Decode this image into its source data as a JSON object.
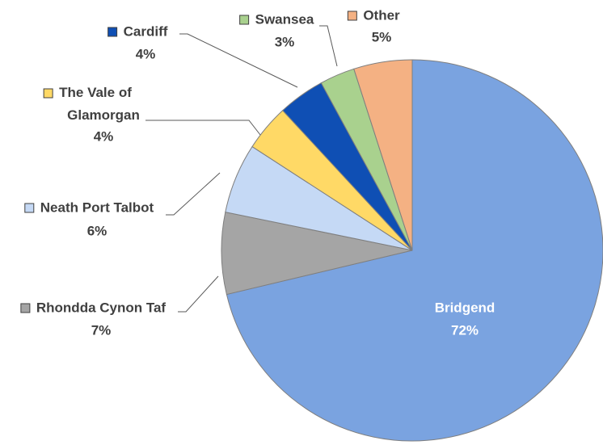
{
  "chart_data": {
    "type": "pie",
    "categories": [
      "Bridgend",
      "Rhondda Cynon Taf",
      "Neath Port Talbot",
      "The Vale of Glamorgan",
      "Cardiff",
      "Swansea",
      "Other"
    ],
    "values": [
      72,
      7,
      6,
      4,
      4,
      3,
      5
    ],
    "value_labels": [
      "72%",
      "7%",
      "6%",
      "4%",
      "4%",
      "3%",
      "5%"
    ],
    "colors": [
      "#7aa3e0",
      "#a5a5a5",
      "#c5d9f5",
      "#ffd966",
      "#0f4fb4",
      "#a9d18e",
      "#f4b183"
    ]
  }
}
